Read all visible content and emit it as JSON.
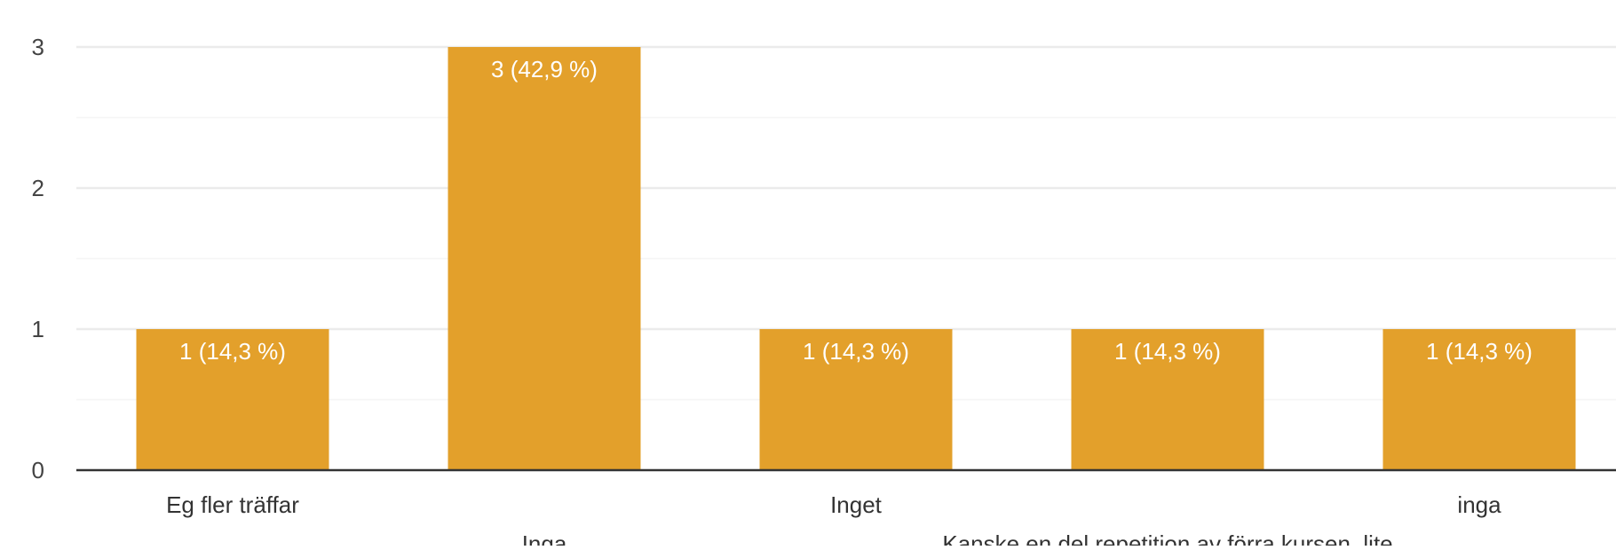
{
  "chart_data": {
    "type": "bar",
    "categories": [
      "Eg fler träffar",
      "Inga",
      "Inget",
      "Kanske en del repetition av förra kursen, lite",
      "inga"
    ],
    "values": [
      1,
      3,
      1,
      1,
      1
    ],
    "data_labels": [
      "1 (14,3 %)",
      "3 (42,9 %)",
      "1 (14,3 %)",
      "1 (14,3 %)",
      "1 (14,3 %)"
    ],
    "y_ticks": [
      "0",
      "1",
      "2",
      "3"
    ],
    "ylim": [
      0,
      3
    ],
    "grid": true,
    "bar_color": "#e3a02b",
    "label_color": "#ffffff",
    "axis_color": "#333333",
    "grid_color": "#ebebeb"
  }
}
